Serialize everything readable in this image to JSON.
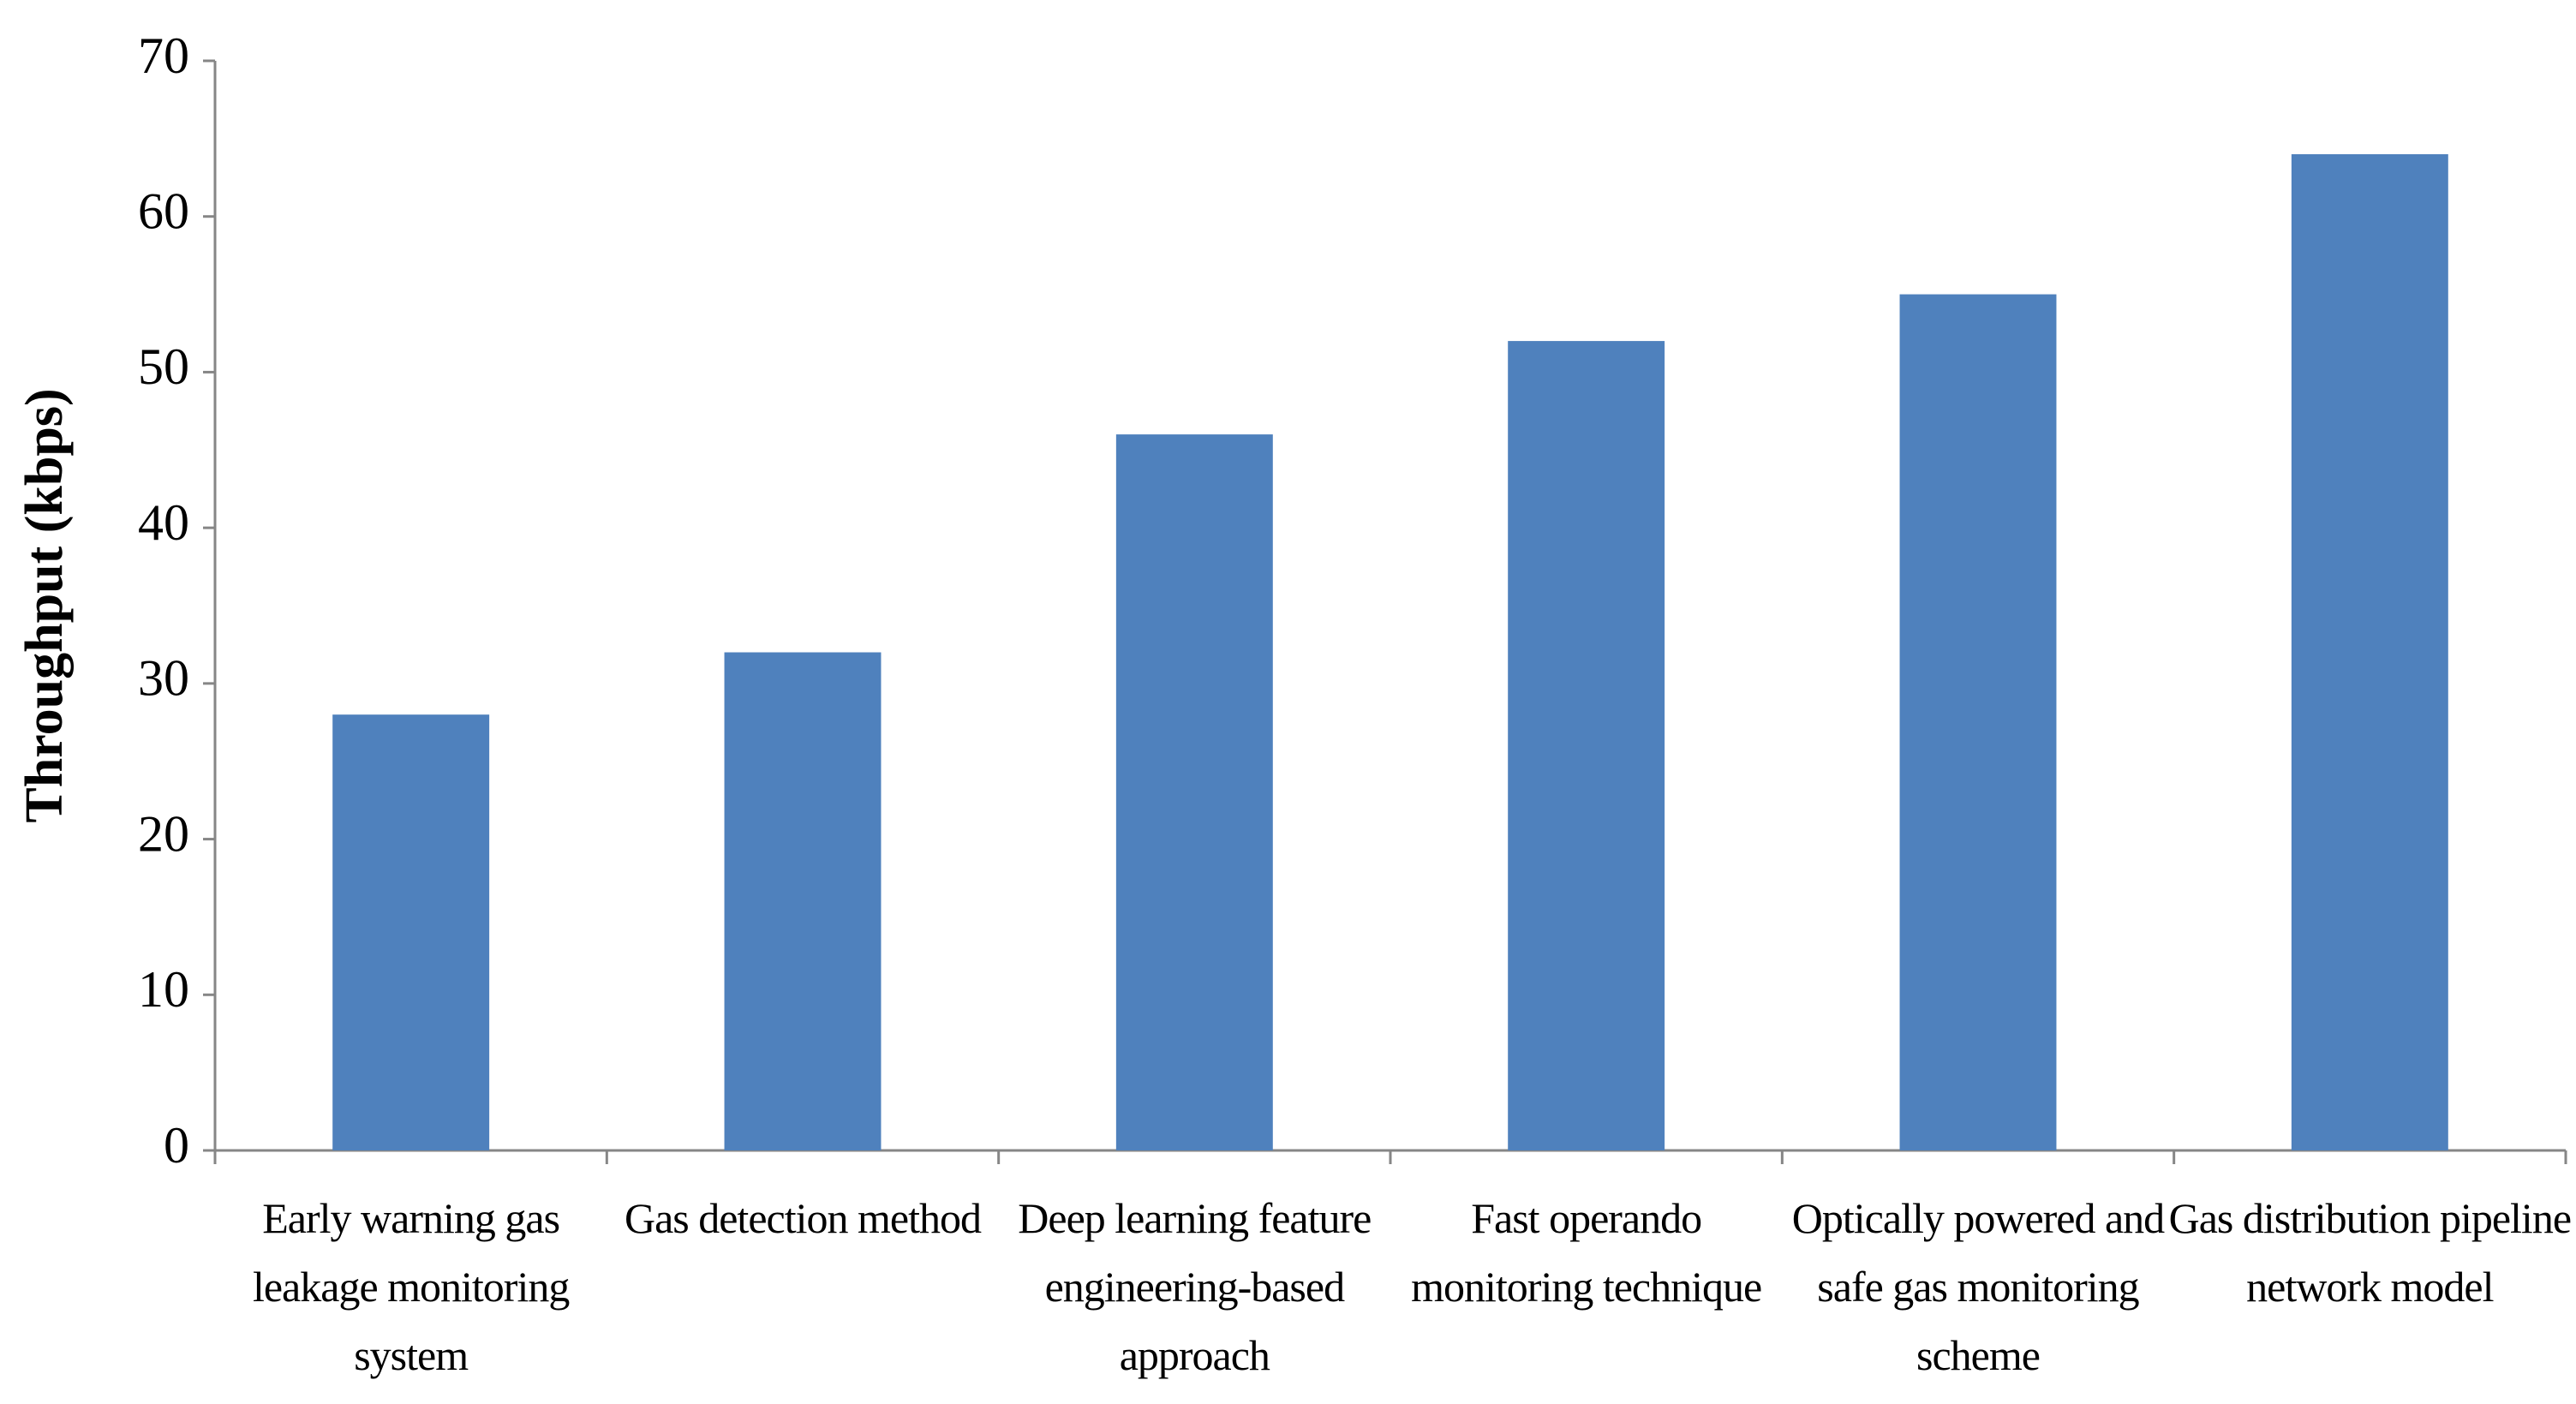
{
  "chart_data": {
    "type": "bar",
    "y_label": "Throughput (kbps)",
    "categories": [
      "Early warning gas leakage monitoring system",
      "Gas detection method",
      "Deep learning feature engineering-based approach",
      "Fast operando monitoring technique",
      "Optically powered and safe gas monitoring scheme",
      "Gas distribution pipeline network model"
    ],
    "values": [
      28,
      32,
      46,
      52,
      55,
      64
    ],
    "color": "#4f81bd",
    "ylim": [
      0,
      70
    ],
    "yticks": [
      0,
      10,
      20,
      30,
      40,
      50,
      60,
      70
    ],
    "grid": false
  }
}
